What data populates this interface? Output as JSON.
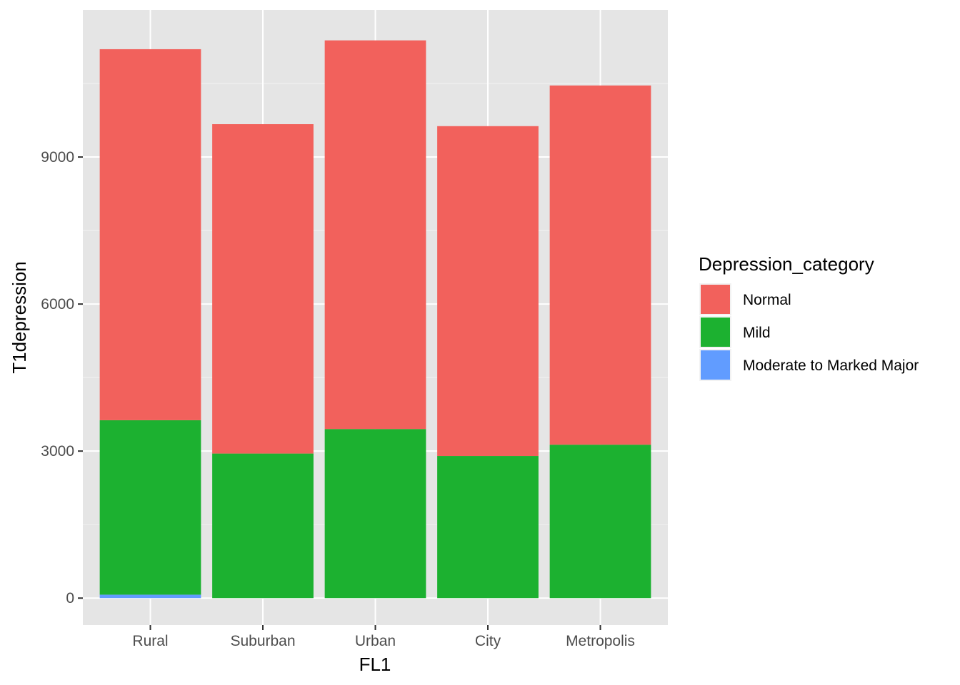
{
  "chart_data": {
    "type": "bar",
    "stacked": true,
    "title": "",
    "xlabel": "FL1",
    "ylabel": "T1depression",
    "categories": [
      "Rural",
      "Suburban",
      "Urban",
      "City",
      "Metropolis"
    ],
    "series": [
      {
        "name": "Moderate to Marked Major",
        "color": "#619CFF",
        "values": [
          70,
          0,
          0,
          0,
          0
        ]
      },
      {
        "name": "Mild",
        "color": "#1CB130",
        "values": [
          3560,
          2950,
          3450,
          2900,
          3130
        ]
      },
      {
        "name": "Normal",
        "color": "#F2615C",
        "values": [
          7570,
          6720,
          7930,
          6730,
          7330
        ]
      }
    ],
    "ylim": [
      -550,
      12000
    ],
    "yticks": [
      0,
      3000,
      6000,
      9000
    ],
    "ytick_labels": [
      "0",
      "3000",
      "6000",
      "9000"
    ],
    "grid": true,
    "panel_background": "#E5E5E5",
    "legend": {
      "title": "Depression_category",
      "position": "right",
      "entries": [
        "Normal",
        "Mild",
        "Moderate to Marked Major"
      ]
    }
  }
}
